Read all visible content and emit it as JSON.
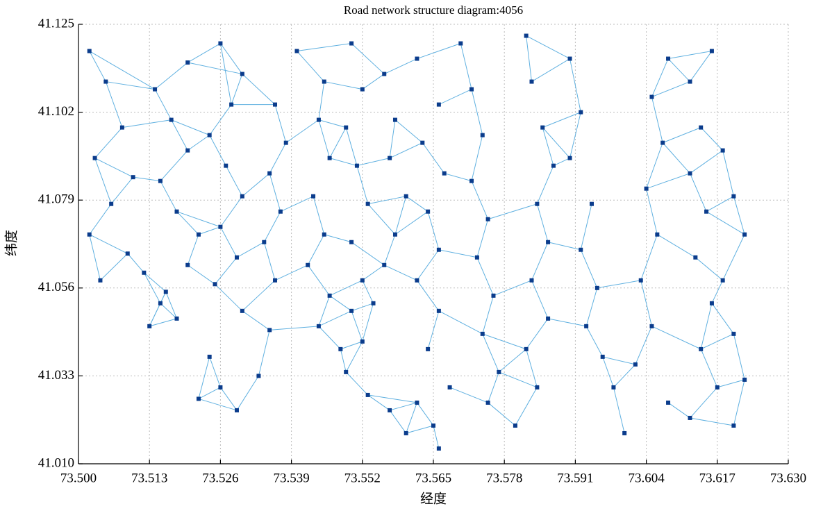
{
  "chart_data": {
    "type": "scatter",
    "title": "Road network structure diagram:4056",
    "x_label": "经度",
    "y_label": "纬度",
    "xlim": [
      73.5,
      73.63
    ],
    "ylim": [
      41.01,
      41.125
    ],
    "xticks": [
      {
        "value": 73.5,
        "label": "73.500"
      },
      73.513,
      73.526,
      73.539,
      73.552,
      73.565,
      73.578,
      73.591,
      73.604,
      73.617,
      {
        "value": 73.63,
        "label": "73.630"
      }
    ],
    "yticks": [
      {
        "value": 41.01,
        "label": "41.010"
      },
      41.033,
      41.056,
      41.079,
      41.102,
      41.125
    ],
    "grid": true,
    "color": "#0b3c8c",
    "edge_color": "#5fb0e0",
    "x": [
      73.502,
      73.505,
      73.508,
      73.503,
      73.51,
      73.506,
      73.502,
      73.509,
      73.512,
      73.504,
      73.515,
      73.513,
      73.518,
      73.516,
      73.52,
      73.522,
      73.518,
      73.515,
      73.52,
      73.517,
      73.514,
      73.52,
      73.526,
      73.53,
      73.528,
      73.524,
      73.527,
      73.53,
      73.526,
      73.529,
      73.525,
      73.53,
      73.524,
      73.526,
      73.529,
      73.522,
      73.533,
      73.535,
      73.536,
      73.534,
      73.537,
      73.535,
      73.538,
      73.536,
      73.54,
      73.545,
      73.544,
      73.546,
      73.543,
      73.545,
      73.542,
      73.546,
      73.544,
      73.548,
      73.55,
      73.552,
      73.55,
      73.553,
      73.551,
      73.549,
      73.552,
      73.55,
      73.556,
      73.558,
      73.557,
      73.56,
      73.558,
      73.556,
      73.554,
      73.552,
      73.549,
      73.553,
      73.557,
      73.56,
      73.562,
      73.565,
      73.566,
      73.568,
      73.564,
      73.566,
      73.562,
      73.566,
      73.564,
      73.567,
      73.563,
      73.566,
      73.562,
      73.57,
      73.572,
      73.574,
      73.572,
      73.575,
      73.573,
      73.576,
      73.574,
      73.577,
      73.575,
      73.58,
      73.584,
      73.582,
      73.586,
      73.583,
      73.586,
      73.584,
      73.587,
      73.585,
      73.583,
      73.582,
      73.59,
      73.592,
      73.59,
      73.594,
      73.592,
      73.595,
      73.593,
      73.596,
      73.598,
      73.602,
      73.605,
      73.603,
      73.606,
      73.604,
      73.607,
      73.605,
      73.608,
      73.612,
      73.614,
      73.612,
      73.615,
      73.613,
      73.616,
      73.614,
      73.617,
      73.612,
      73.608,
      73.62,
      73.622,
      73.62,
      73.618,
      73.622,
      73.62,
      73.618,
      73.616,
      73.6
    ],
    "y": [
      41.118,
      41.11,
      41.098,
      41.09,
      41.085,
      41.078,
      41.07,
      41.065,
      41.06,
      41.058,
      41.052,
      41.046,
      41.048,
      41.055,
      41.062,
      41.07,
      41.076,
      41.084,
      41.092,
      41.1,
      41.108,
      41.115,
      41.12,
      41.112,
      41.104,
      41.096,
      41.088,
      41.08,
      41.072,
      41.064,
      41.057,
      41.05,
      41.038,
      41.03,
      41.024,
      41.027,
      41.033,
      41.045,
      41.058,
      41.068,
      41.076,
      41.086,
      41.094,
      41.104,
      41.118,
      41.11,
      41.1,
      41.09,
      41.08,
      41.07,
      41.062,
      41.054,
      41.046,
      41.04,
      41.05,
      41.058,
      41.068,
      41.078,
      41.088,
      41.098,
      41.108,
      41.12,
      41.112,
      41.1,
      41.09,
      41.08,
      41.07,
      41.062,
      41.052,
      41.042,
      41.034,
      41.028,
      41.024,
      41.018,
      41.026,
      41.02,
      41.014,
      41.03,
      41.04,
      41.05,
      41.058,
      41.066,
      41.076,
      41.086,
      41.094,
      41.104,
      41.116,
      41.12,
      41.108,
      41.096,
      41.084,
      41.074,
      41.064,
      41.054,
      41.044,
      41.034,
      41.026,
      41.02,
      41.03,
      41.04,
      41.048,
      41.058,
      41.068,
      41.078,
      41.088,
      41.098,
      41.11,
      41.122,
      41.116,
      41.102,
      41.09,
      41.078,
      41.066,
      41.056,
      41.046,
      41.038,
      41.03,
      41.036,
      41.046,
      41.058,
      41.07,
      41.082,
      41.094,
      41.106,
      41.116,
      41.11,
      41.098,
      41.086,
      41.076,
      41.064,
      41.052,
      41.04,
      41.03,
      41.022,
      41.026,
      41.02,
      41.032,
      41.044,
      41.058,
      41.07,
      41.08,
      41.092,
      41.118,
      41.018
    ]
  }
}
